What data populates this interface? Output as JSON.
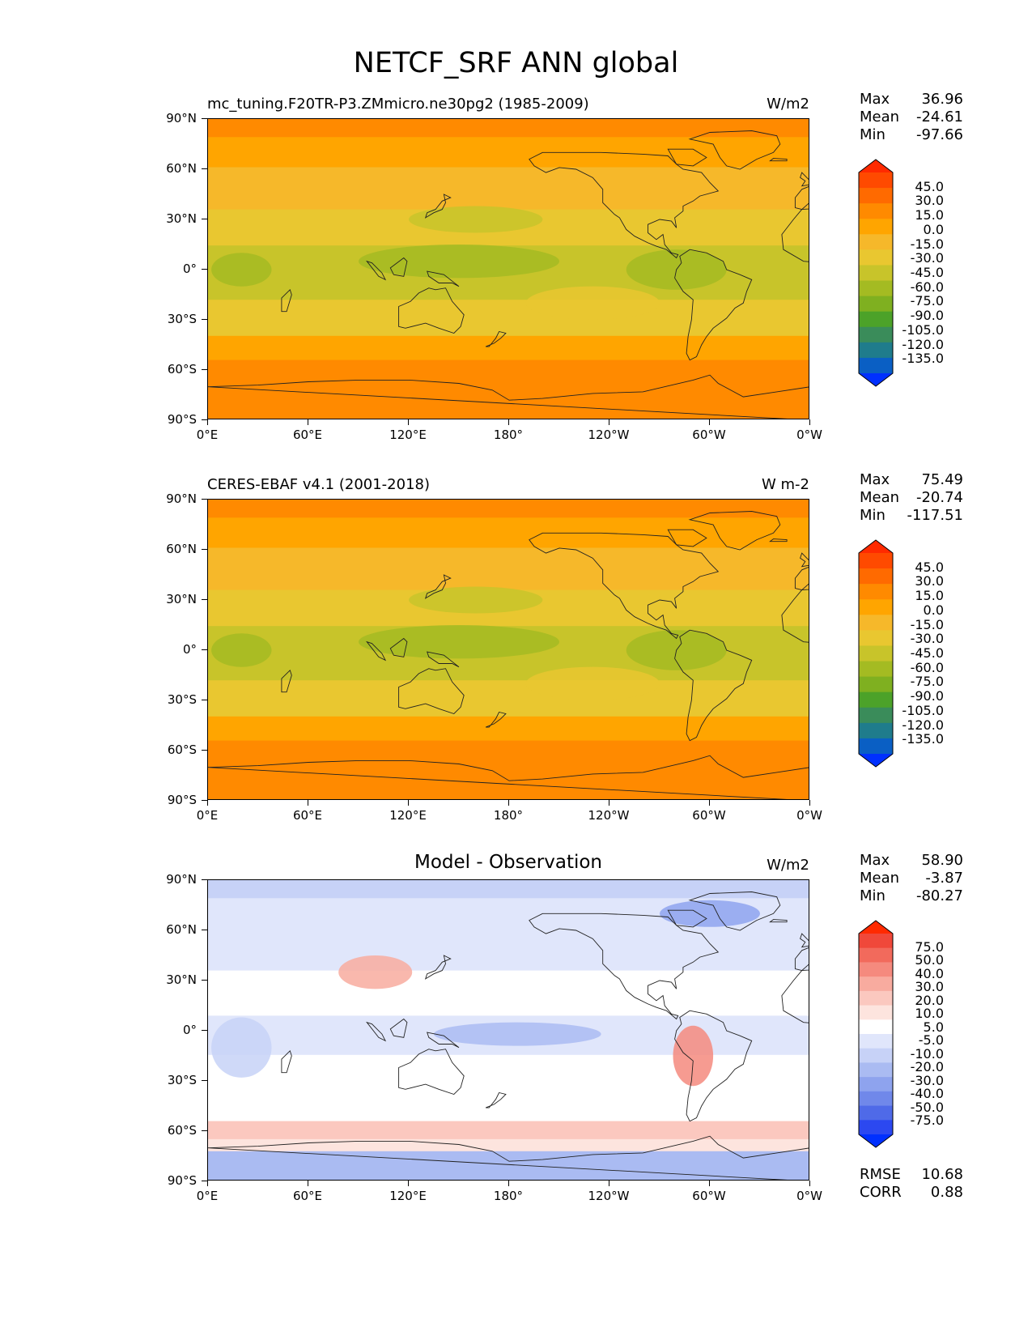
{
  "title": "NETCF_SRF ANN global",
  "lat_ticks": [
    "90°N",
    "60°N",
    "30°N",
    "0°",
    "30°S",
    "60°S",
    "90°S"
  ],
  "lon_ticks": [
    "0°E",
    "60°E",
    "120°E",
    "180°",
    "120°W",
    "60°W",
    "0°W"
  ],
  "panels": [
    {
      "title": "mc_tuning.F20TR-P3.ZMmicro.ne30pg2 (1985-2009)",
      "units": "W/m2",
      "stats": {
        "max_label": "Max",
        "max": "36.96",
        "mean_label": "Mean",
        "mean": "-24.61",
        "min_label": "Min",
        "min": "-97.66"
      },
      "colorbar_levels": [
        "45.0",
        "30.0",
        "15.0",
        "0.0",
        "-15.0",
        "-30.0",
        "-45.0",
        "-60.0",
        "-75.0",
        "-90.0",
        "-105.0",
        "-120.0",
        "-135.0"
      ],
      "colorbar_colors": [
        "#ff2a00",
        "#ff4a00",
        "#ff6a00",
        "#ff8a00",
        "#ffa500",
        "#f6b82a",
        "#e9c730",
        "#c8c42a",
        "#a4bb22",
        "#7fb020",
        "#4ca229",
        "#3a8c5a",
        "#1f7c8c",
        "#0a5fc4",
        "#0030ff"
      ],
      "map_palette": "sequential",
      "type": "filled-contour map"
    },
    {
      "title": "CERES-EBAF v4.1 (2001-2018)",
      "units": "W m-2",
      "stats": {
        "max_label": "Max",
        "max": "75.49",
        "mean_label": "Mean",
        "mean": "-20.74",
        "min_label": "Min",
        "min": "-117.51"
      },
      "colorbar_levels": [
        "45.0",
        "30.0",
        "15.0",
        "0.0",
        "-15.0",
        "-30.0",
        "-45.0",
        "-60.0",
        "-75.0",
        "-90.0",
        "-105.0",
        "-120.0",
        "-135.0"
      ],
      "colorbar_colors": [
        "#ff2a00",
        "#ff4a00",
        "#ff6a00",
        "#ff8a00",
        "#ffa500",
        "#f6b82a",
        "#e9c730",
        "#c8c42a",
        "#a4bb22",
        "#7fb020",
        "#4ca229",
        "#3a8c5a",
        "#1f7c8c",
        "#0a5fc4",
        "#0030ff"
      ],
      "map_palette": "sequential",
      "type": "filled-contour map"
    },
    {
      "title": "Model - Observation",
      "units": "W/m2",
      "stats": {
        "max_label": "Max",
        "max": "58.90",
        "mean_label": "Mean",
        "mean": "-3.87",
        "min_label": "Min",
        "min": "-80.27"
      },
      "colorbar_levels": [
        "75.0",
        "50.0",
        "40.0",
        "30.0",
        "20.0",
        "10.0",
        "5.0",
        "-5.0",
        "-10.0",
        "-20.0",
        "-30.0",
        "-40.0",
        "-50.0",
        "-75.0"
      ],
      "colorbar_colors": [
        "#ff2a00",
        "#f0483a",
        "#f26a5c",
        "#f58a7e",
        "#f8ab9f",
        "#fbc8bf",
        "#fde4de",
        "#ffffff",
        "#e0e6fb",
        "#c7d2f7",
        "#aabbf2",
        "#8ea3ee",
        "#7088ea",
        "#4f6ae8",
        "#2c48f0",
        "#0030ff"
      ],
      "map_palette": "diverging",
      "type": "filled-contour map"
    }
  ],
  "metrics": {
    "rmse_label": "RMSE",
    "rmse": "10.68",
    "corr_label": "CORR",
    "corr": "0.88"
  }
}
